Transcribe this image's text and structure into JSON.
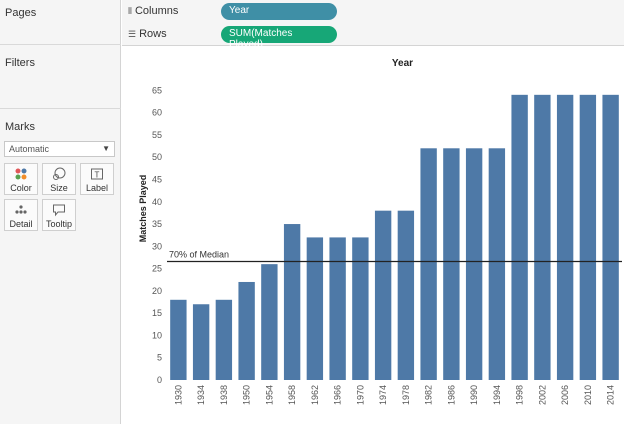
{
  "panels": {
    "pages": "Pages",
    "filters": "Filters",
    "marks": "Marks",
    "mark_type": "Automatic",
    "mark_buttons": [
      "Color",
      "Size",
      "Label",
      "Detail",
      "Tooltip"
    ]
  },
  "shelves": {
    "columns_label": "Columns",
    "columns_pill": "Year",
    "rows_label": "Rows",
    "rows_pill": "SUM(Matches Played)"
  },
  "colors": {
    "bar": "#4e79a7",
    "columns_pill": "#3f8fa6",
    "rows_pill": "#17a777",
    "reference_line": "#222222"
  },
  "chart_data": {
    "type": "bar",
    "title": "Year",
    "xlabel": "",
    "ylabel": "Matches Played",
    "categories": [
      "1930",
      "1934",
      "1938",
      "1950",
      "1954",
      "1958",
      "1962",
      "1966",
      "1970",
      "1974",
      "1978",
      "1982",
      "1986",
      "1990",
      "1994",
      "1998",
      "2002",
      "2006",
      "2010",
      "2014"
    ],
    "values": [
      18,
      17,
      18,
      22,
      26,
      35,
      32,
      32,
      32,
      38,
      38,
      52,
      52,
      52,
      52,
      64,
      64,
      64,
      64,
      64
    ],
    "ylim": [
      0,
      68
    ],
    "yticks": [
      0,
      5,
      10,
      15,
      20,
      25,
      30,
      35,
      40,
      45,
      50,
      55,
      60,
      65
    ],
    "reference_line": {
      "label": "70% of Median",
      "value": 26.6
    },
    "grid": false
  }
}
